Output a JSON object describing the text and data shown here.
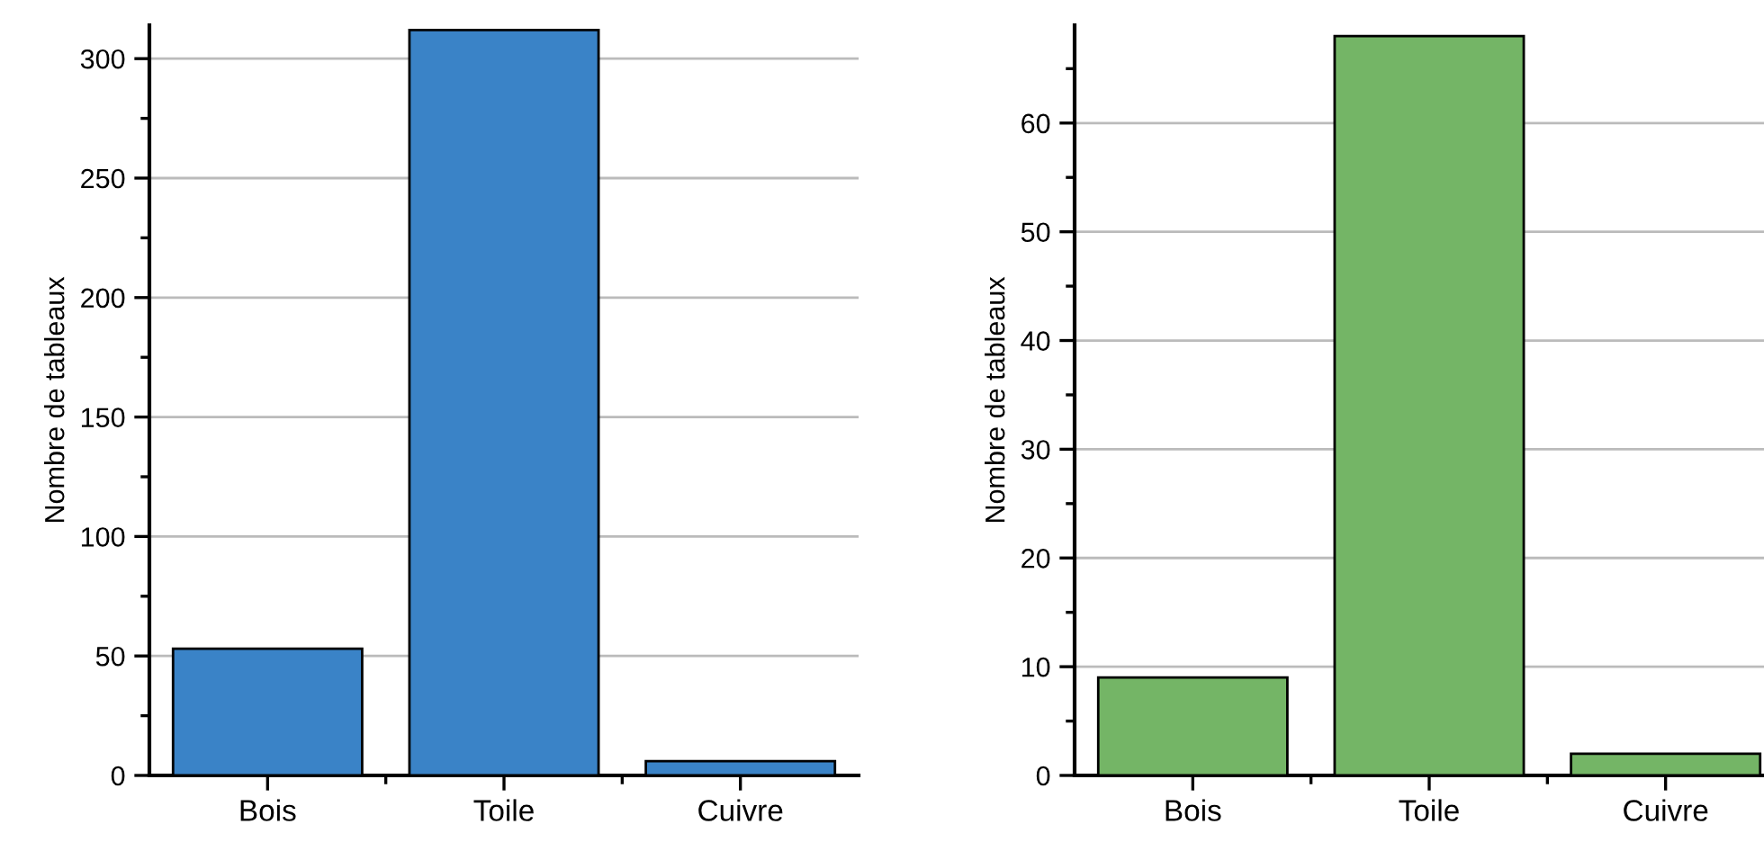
{
  "chart_data": [
    {
      "type": "bar",
      "ylabel": "Nombre de tableaux",
      "categories": [
        "Bois",
        "Toile",
        "Cuivre"
      ],
      "values": [
        53,
        312,
        6
      ],
      "color": "#3a83c7",
      "ylim": [
        0,
        314
      ],
      "yticks": [
        0,
        {
          "value": 25,
          "label": null
        },
        50,
        {
          "value": 75,
          "label": null
        },
        100,
        {
          "value": 125,
          "label": null
        },
        150,
        {
          "value": 175,
          "label": null
        },
        200,
        {
          "value": 225,
          "label": null
        },
        250,
        {
          "value": 275,
          "label": null
        },
        300
      ],
      "grid": "y"
    },
    {
      "type": "bar",
      "ylabel": "Nombre de tableaux",
      "categories": [
        "Bois",
        "Toile",
        "Cuivre"
      ],
      "values": [
        9,
        68,
        2
      ],
      "color": "#74b566",
      "ylim": [
        0,
        69
      ],
      "yticks": [
        0,
        {
          "value": 5,
          "label": null
        },
        10,
        {
          "value": 15,
          "label": null
        },
        20,
        {
          "value": 25,
          "label": null
        },
        30,
        {
          "value": 35,
          "label": null
        },
        40,
        {
          "value": 45,
          "label": null
        },
        50,
        {
          "value": 55,
          "label": null
        },
        60,
        {
          "value": 65,
          "label": null
        }
      ],
      "grid": "y"
    }
  ]
}
